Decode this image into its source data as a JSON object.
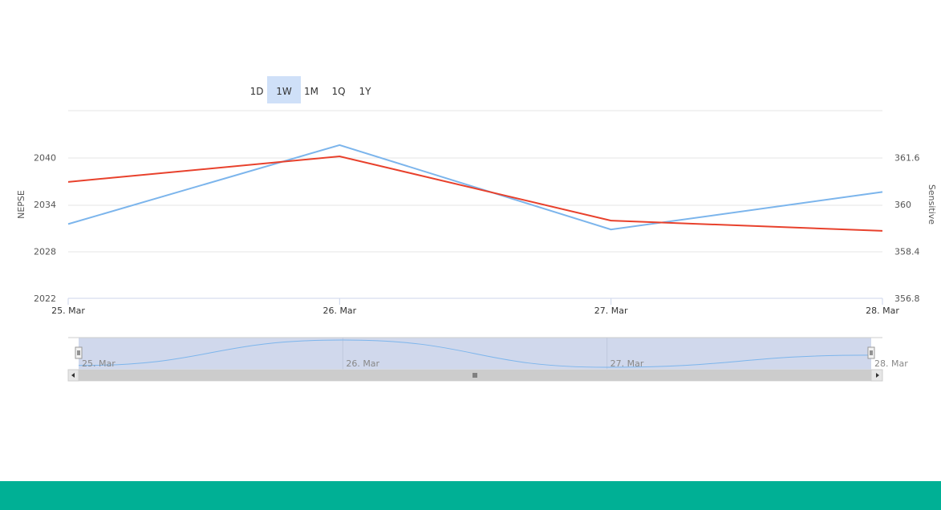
{
  "range_selector": {
    "buttons": [
      "1D",
      "1W",
      "1M",
      "1Q",
      "1Y"
    ],
    "selected": 1
  },
  "chart_data": {
    "type": "line",
    "categories": [
      "25. Mar",
      "26. Mar",
      "27. Mar",
      "28. Mar"
    ],
    "y_left": {
      "label": "NEPSE",
      "ticks": [
        "2022",
        "2028",
        "2034",
        "2040"
      ],
      "range": [
        2022,
        2046
      ]
    },
    "y_right": {
      "label": "Sensitive",
      "ticks": [
        "356.8",
        "358.4",
        "360",
        "361.6"
      ],
      "range": [
        356.8,
        363.2
      ]
    },
    "series": [
      {
        "name": "NEPSE",
        "axis": "left",
        "color": "#7cb5ec",
        "values": [
          2031.5,
          2041.6,
          2030.8,
          2035.6
        ]
      },
      {
        "name": "Sensitive",
        "axis": "right",
        "color": "#e8412c",
        "values": [
          360.77,
          361.64,
          359.45,
          359.1
        ]
      }
    ],
    "grid": true
  },
  "navigator": {
    "labels": [
      "25. Mar",
      "26. Mar",
      "27. Mar",
      "28. Mar"
    ]
  },
  "colors": {
    "footer": "#00b095",
    "selected_button": "#cfe0f8",
    "navigator_mask": "#d0d8ec",
    "scrollbar": "#cccccc"
  }
}
